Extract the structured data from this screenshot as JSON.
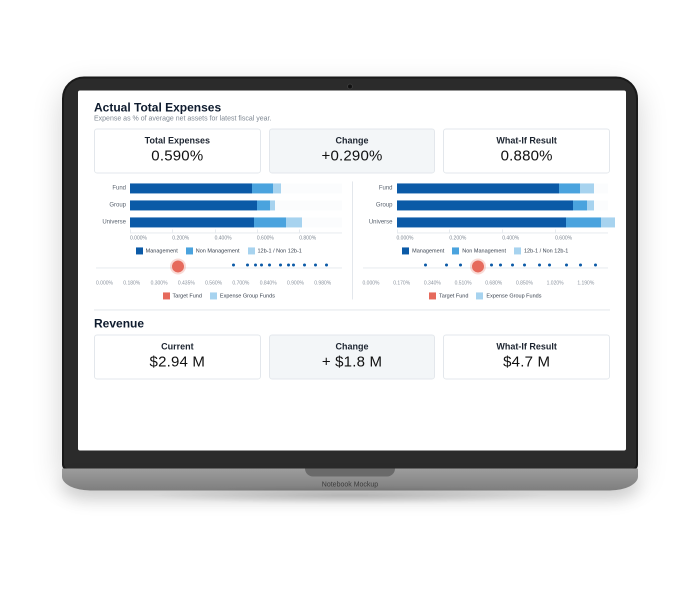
{
  "mockup": {
    "base_label": "Notebook Mockup"
  },
  "expenses": {
    "title": "Actual Total Expenses",
    "subtitle": "Expense as % of average net assets for latest fiscal year.",
    "kpis": {
      "total": {
        "label": "Total Expenses",
        "value": "0.590%"
      },
      "change": {
        "label": "Change",
        "value": "+0.290%"
      },
      "whatif": {
        "label": "What-If Result",
        "value": "0.880%"
      }
    },
    "chart_left": {
      "type": "stacked-horizontal-bar",
      "categories": [
        "Fund",
        "Group",
        "Universe"
      ],
      "segment_keys": [
        "Management",
        "Non Management",
        "12b-1 / Non 12b-1"
      ],
      "segment_colors": [
        "#0b5aa7",
        "#4aa3de",
        "#a7d3ef"
      ],
      "series": [
        {
          "values": [
            0.46,
            0.08,
            0.03
          ]
        },
        {
          "values": [
            0.48,
            0.05,
            0.02
          ]
        },
        {
          "values": [
            0.47,
            0.12,
            0.06
          ]
        }
      ],
      "xlim": [
        0.0,
        0.8
      ],
      "xticks": [
        "0.000%",
        "0.200%",
        "0.400%",
        "0.600%",
        "0.800%"
      ],
      "axis_color": "#e7ebef",
      "tick_font": 5,
      "cat_font": 6
    },
    "chart_right": {
      "type": "stacked-horizontal-bar",
      "categories": [
        "Fund",
        "Group",
        "Universe"
      ],
      "segment_keys": [
        "Management",
        "Non Management",
        "12b-1 / Non 12b-1"
      ],
      "segment_colors": [
        "#0b5aa7",
        "#4aa3de",
        "#a7d3ef"
      ],
      "series": [
        {
          "values": [
            0.46,
            0.06,
            0.04
          ]
        },
        {
          "values": [
            0.5,
            0.04,
            0.02
          ]
        },
        {
          "values": [
            0.48,
            0.1,
            0.04
          ]
        }
      ],
      "xlim": [
        0.0,
        0.6
      ],
      "xticks": [
        "0.000%",
        "0.200%",
        "0.400%",
        "0.600%"
      ],
      "axis_color": "#e7ebef",
      "tick_font": 5,
      "cat_font": 6
    },
    "bar_legend": {
      "items": [
        "Management",
        "Non Management",
        "12b-1 / Non 12b-1"
      ],
      "colors": [
        "#0b5aa7",
        "#4aa3de",
        "#a7d3ef"
      ]
    },
    "strip_left": {
      "type": "strip",
      "xlim": [
        0.0,
        0.9
      ],
      "xticks": [
        "0.000%",
        "0.180%",
        "0.300%",
        "0.435%",
        "0.560%",
        "0.700%",
        "0.840%",
        "0.900%",
        "0.980%"
      ],
      "target_x": 0.3,
      "points_x": [
        0.5,
        0.55,
        0.58,
        0.6,
        0.63,
        0.67,
        0.7,
        0.72,
        0.76,
        0.8,
        0.84
      ],
      "target_color": "#e66a5c",
      "point_color": "#0b5aa7"
    },
    "strip_right": {
      "type": "strip",
      "xlim": [
        0.0,
        1.19
      ],
      "xticks": [
        "0.000%",
        "0.170%",
        "0.340%",
        "0.510%",
        "0.680%",
        "0.850%",
        "1.020%",
        "1.190%"
      ],
      "target_x": 0.56,
      "points_x": [
        0.3,
        0.4,
        0.47,
        0.62,
        0.66,
        0.72,
        0.78,
        0.85,
        0.9,
        0.98,
        1.05,
        1.12
      ],
      "target_color": "#e66a5c",
      "point_color": "#0b5aa7"
    },
    "strip_legend": {
      "items": [
        "Target Fund",
        "Expense Group Funds"
      ],
      "colors": [
        "#e66a5c",
        "#a7d3ef"
      ]
    }
  },
  "revenue": {
    "title": "Revenue",
    "kpis": {
      "current": {
        "label": "Current",
        "value": "$2.94 M"
      },
      "change": {
        "label": "Change",
        "value": "+ $1.8 M"
      },
      "whatif": {
        "label": "What-If Result",
        "value": "$4.7 M"
      }
    }
  },
  "palette": {
    "text_primary": "#0e1b2e",
    "text_muted": "#7f8893",
    "card_border": "#e3e7ec",
    "highlight_bg": "#f3f6f8",
    "background": "#ffffff"
  },
  "typography": {
    "section_title_pt": 12,
    "section_subtitle_pt": 7,
    "kpi_label_pt": 9,
    "kpi_value_pt": 15,
    "legend_pt": 5.5
  }
}
